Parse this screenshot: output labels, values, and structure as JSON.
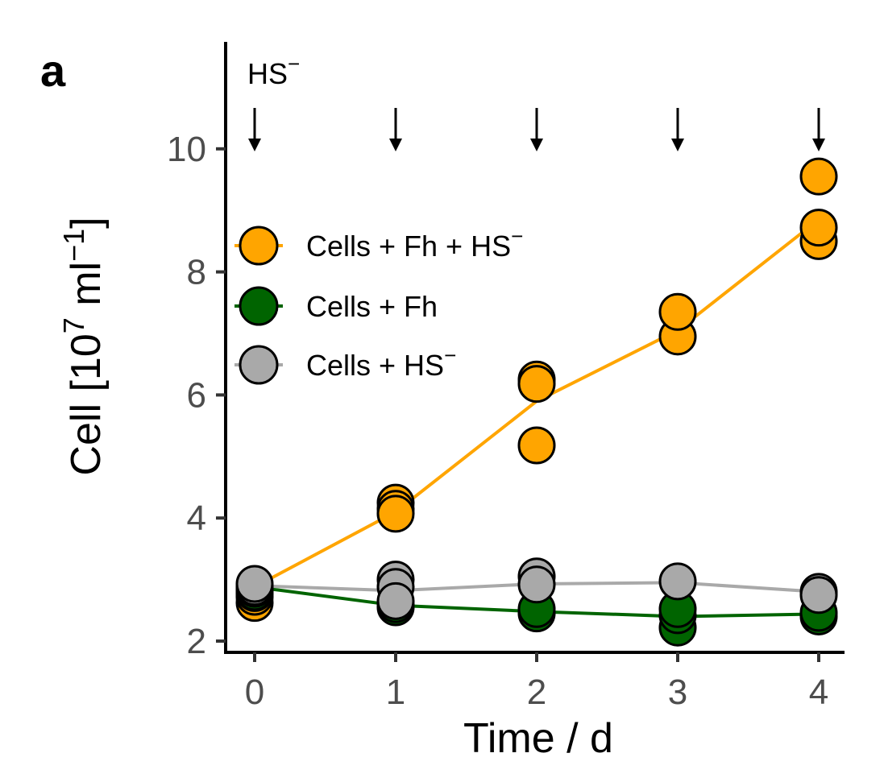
{
  "chart_data": {
    "type": "scatter",
    "panel_label": "a",
    "title": "",
    "xlabel": "Time / d",
    "ylabel": {
      "main": "Cell [10",
      "exp": "7",
      "unit": " ml",
      "unit_exp": "−1",
      "close": "]"
    },
    "xlim": [
      -0.2,
      4.2
    ],
    "ylim": [
      1.9,
      11.8
    ],
    "x_ticks": [
      0,
      1,
      2,
      3,
      4
    ],
    "x_tick_labels": [
      "0",
      "1",
      "2",
      "3",
      "4"
    ],
    "y_ticks": [
      2,
      4,
      6,
      8,
      10
    ],
    "y_tick_labels": [
      "2",
      "4",
      "6",
      "8",
      "10"
    ],
    "grid": false,
    "legend_position": "top-left inside",
    "annotation": {
      "text": "HS",
      "sup": "−",
      "description": "HS− addition at each time point",
      "arrow_x": [
        0,
        1,
        2,
        3,
        4
      ]
    },
    "series": [
      {
        "name": "Cells + Fh + HS−",
        "label_main": "Cells + Fh + HS",
        "label_sup": "−",
        "color": "#FFA500",
        "mean_line": {
          "x": [
            0,
            1,
            2,
            3,
            4
          ],
          "y": [
            2.88,
            4.1,
            5.9,
            7.05,
            8.85
          ]
        },
        "points": [
          {
            "x": 0,
            "y": 2.62
          },
          {
            "x": 0,
            "y": 2.72
          },
          {
            "x": 0,
            "y": 2.78
          },
          {
            "x": 1,
            "y": 4.25
          },
          {
            "x": 1,
            "y": 4.15
          },
          {
            "x": 1,
            "y": 4.07
          },
          {
            "x": 2,
            "y": 6.25
          },
          {
            "x": 2,
            "y": 6.18
          },
          {
            "x": 2,
            "y": 5.18
          },
          {
            "x": 3,
            "y": 6.95
          },
          {
            "x": 3,
            "y": 7.35
          },
          {
            "x": 4,
            "y": 9.55
          },
          {
            "x": 4,
            "y": 8.5
          },
          {
            "x": 4,
            "y": 8.72
          }
        ]
      },
      {
        "name": "Cells + Fh",
        "label_main": "Cells + Fh",
        "label_sup": "",
        "color": "#006400",
        "mean_line": {
          "x": [
            0,
            1,
            2,
            3,
            4
          ],
          "y": [
            2.88,
            2.58,
            2.48,
            2.4,
            2.44
          ]
        },
        "points": [
          {
            "x": 0,
            "y": 2.8
          },
          {
            "x": 0,
            "y": 2.85
          },
          {
            "x": 1,
            "y": 2.55
          },
          {
            "x": 1,
            "y": 2.6
          },
          {
            "x": 2,
            "y": 2.45
          },
          {
            "x": 2,
            "y": 2.52
          },
          {
            "x": 3,
            "y": 2.22
          },
          {
            "x": 3,
            "y": 2.42
          },
          {
            "x": 3,
            "y": 2.52
          },
          {
            "x": 4,
            "y": 2.4
          },
          {
            "x": 4,
            "y": 2.46
          }
        ]
      },
      {
        "name": "Cells + HS−",
        "label_main": "Cells + HS",
        "label_sup": "−",
        "color": "#A9A9A9",
        "mean_line": {
          "x": [
            0,
            1,
            2,
            3,
            4
          ],
          "y": [
            2.9,
            2.82,
            2.93,
            2.95,
            2.8
          ]
        },
        "points": [
          {
            "x": 0,
            "y": 2.88
          },
          {
            "x": 0,
            "y": 2.93
          },
          {
            "x": 1,
            "y": 3.0
          },
          {
            "x": 1,
            "y": 2.88
          },
          {
            "x": 1,
            "y": 2.65
          },
          {
            "x": 2,
            "y": 3.05
          },
          {
            "x": 2,
            "y": 2.92
          },
          {
            "x": 3,
            "y": 2.97
          },
          {
            "x": 4,
            "y": 2.8
          },
          {
            "x": 4,
            "y": 2.75
          }
        ]
      }
    ]
  }
}
